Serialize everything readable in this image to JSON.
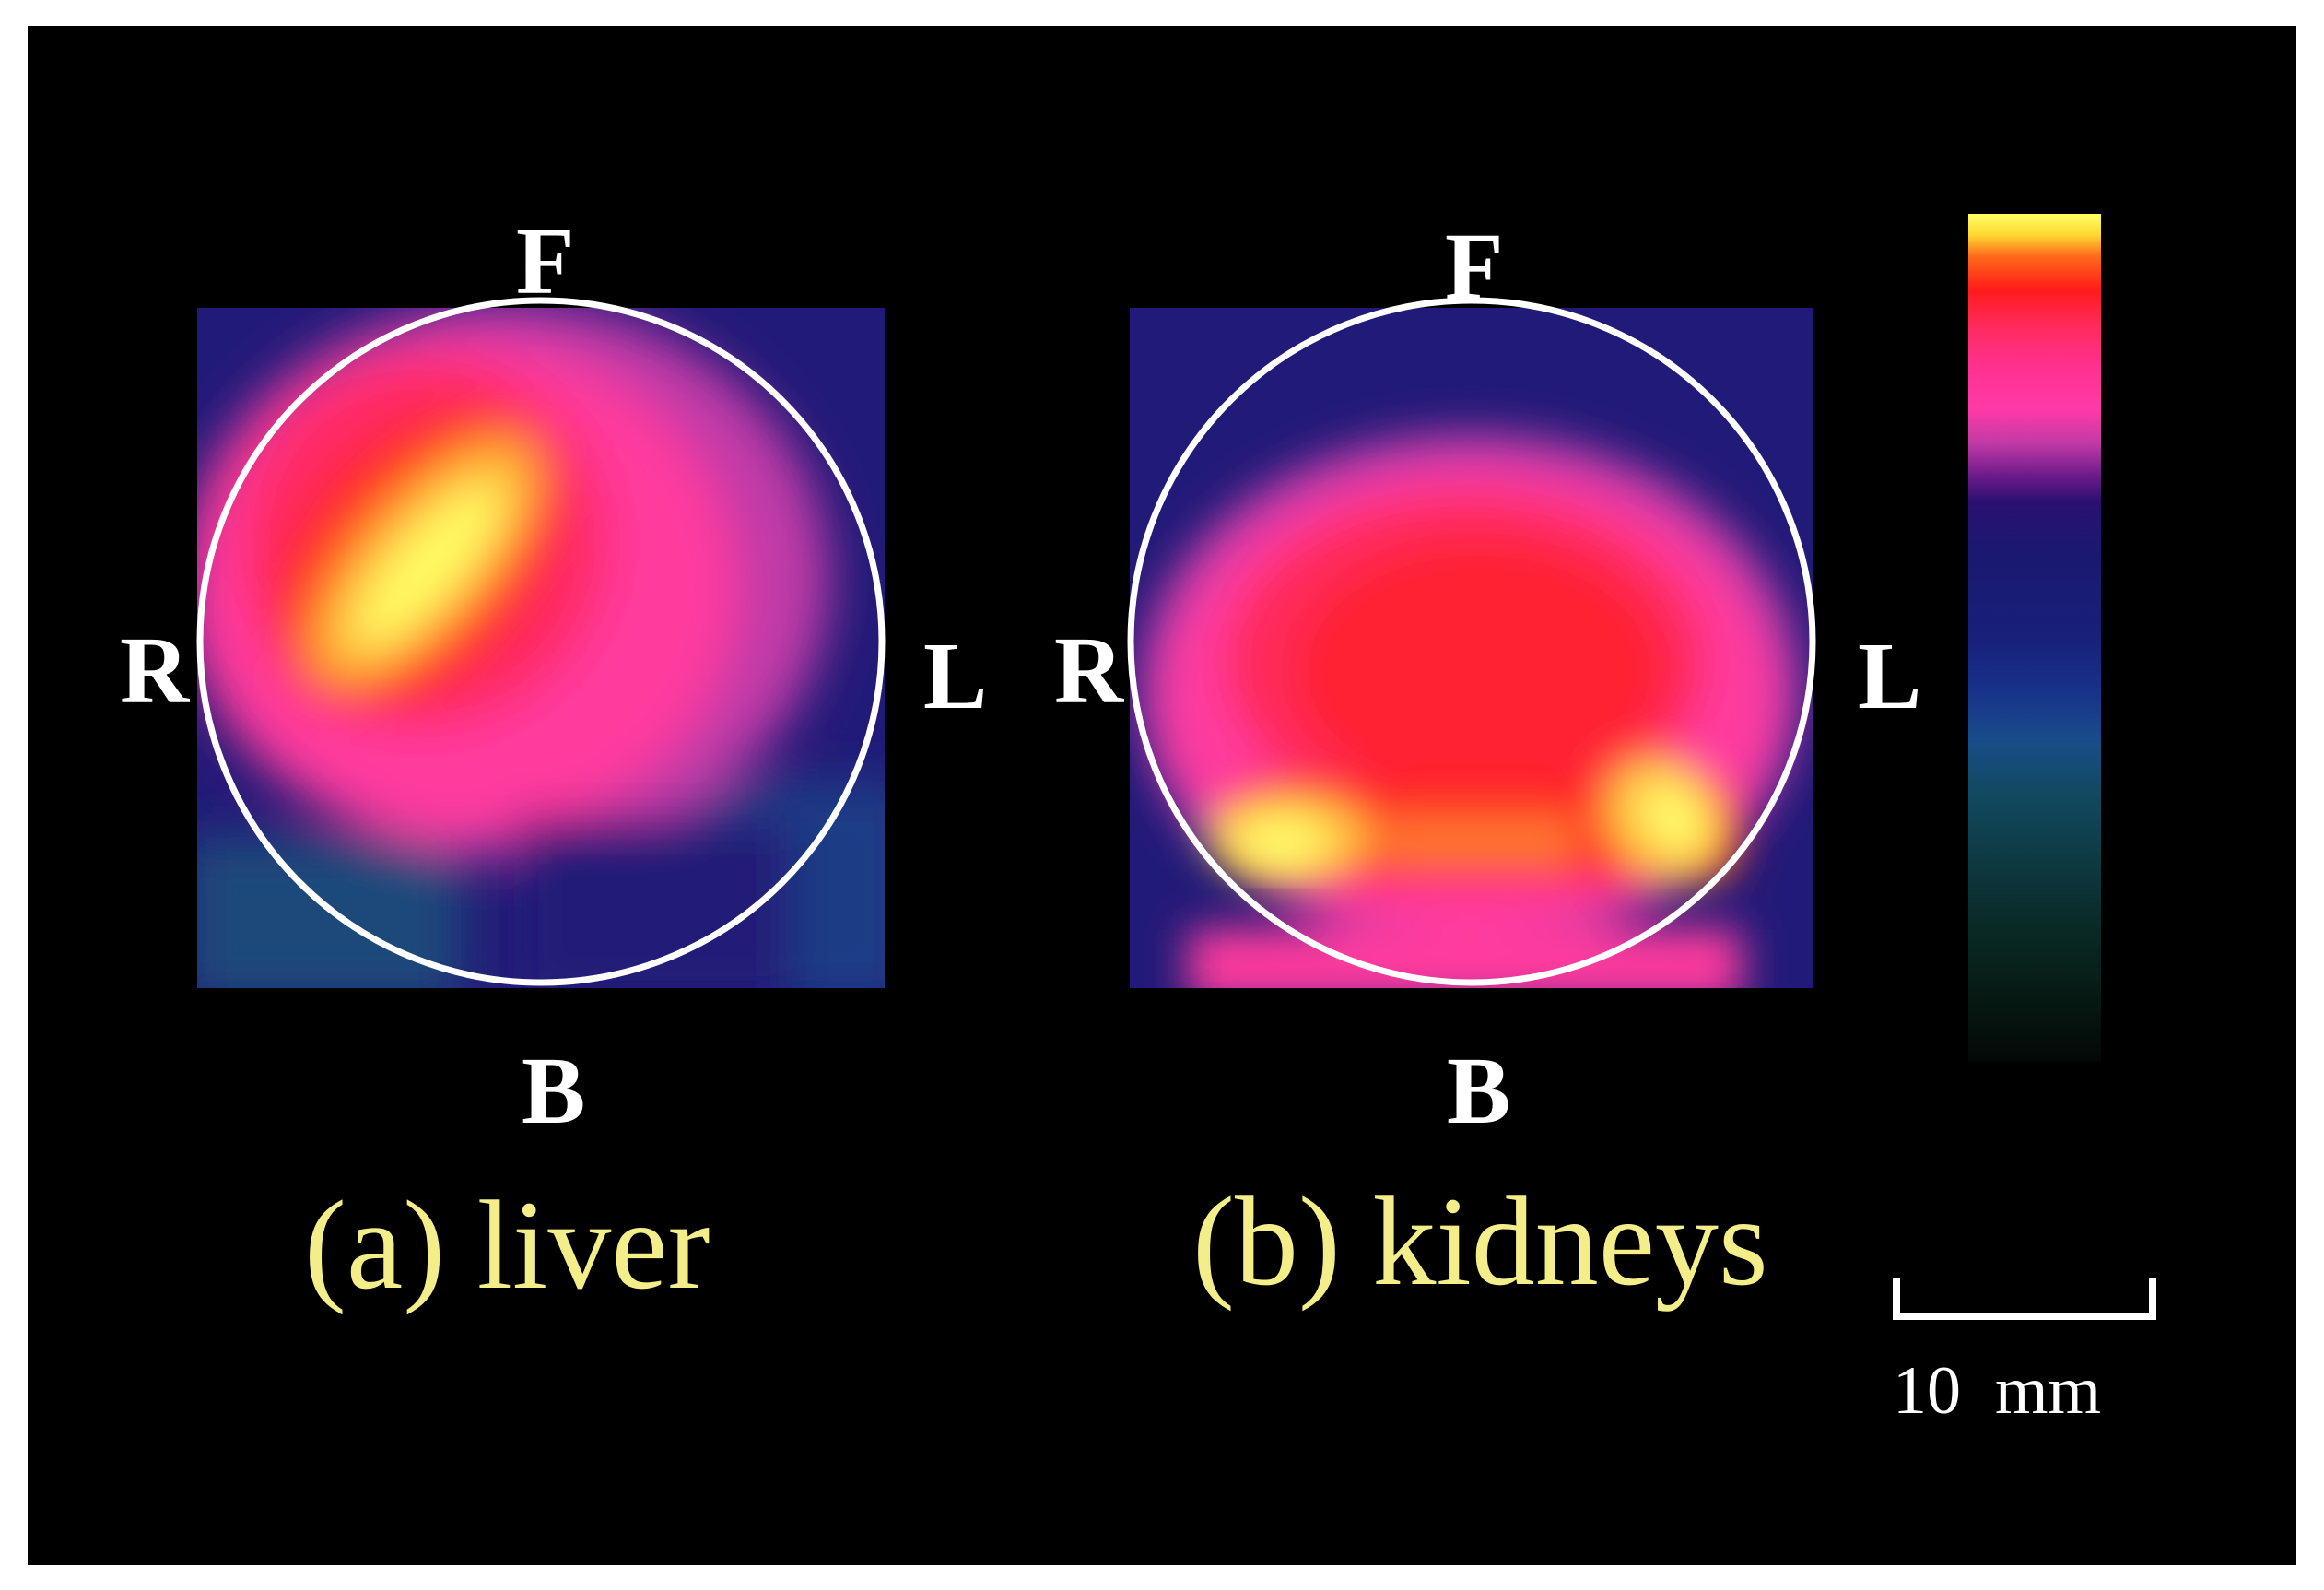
{
  "panels": [
    {
      "id": "liver",
      "labels": {
        "top": "F",
        "bottom": "B",
        "left": "R",
        "right": "L"
      },
      "caption": "(a) liver"
    },
    {
      "id": "kidneys",
      "labels": {
        "top": "F",
        "bottom": "B",
        "left": "R",
        "right": "L"
      },
      "caption": "(b) kidneys"
    }
  ],
  "colorbar": {
    "colors": [
      "#ffff66",
      "#ff1a1a",
      "#ff3aa8",
      "#2a1070",
      "#18207a",
      "#184c8a",
      "#0e3a44",
      "#030806"
    ]
  },
  "scale_bar": {
    "label": "10  mm"
  },
  "colors": {
    "background": "#000000",
    "border": "#ffffff",
    "caption": "#f4ee8a",
    "orientation_label": "#ffffff"
  }
}
